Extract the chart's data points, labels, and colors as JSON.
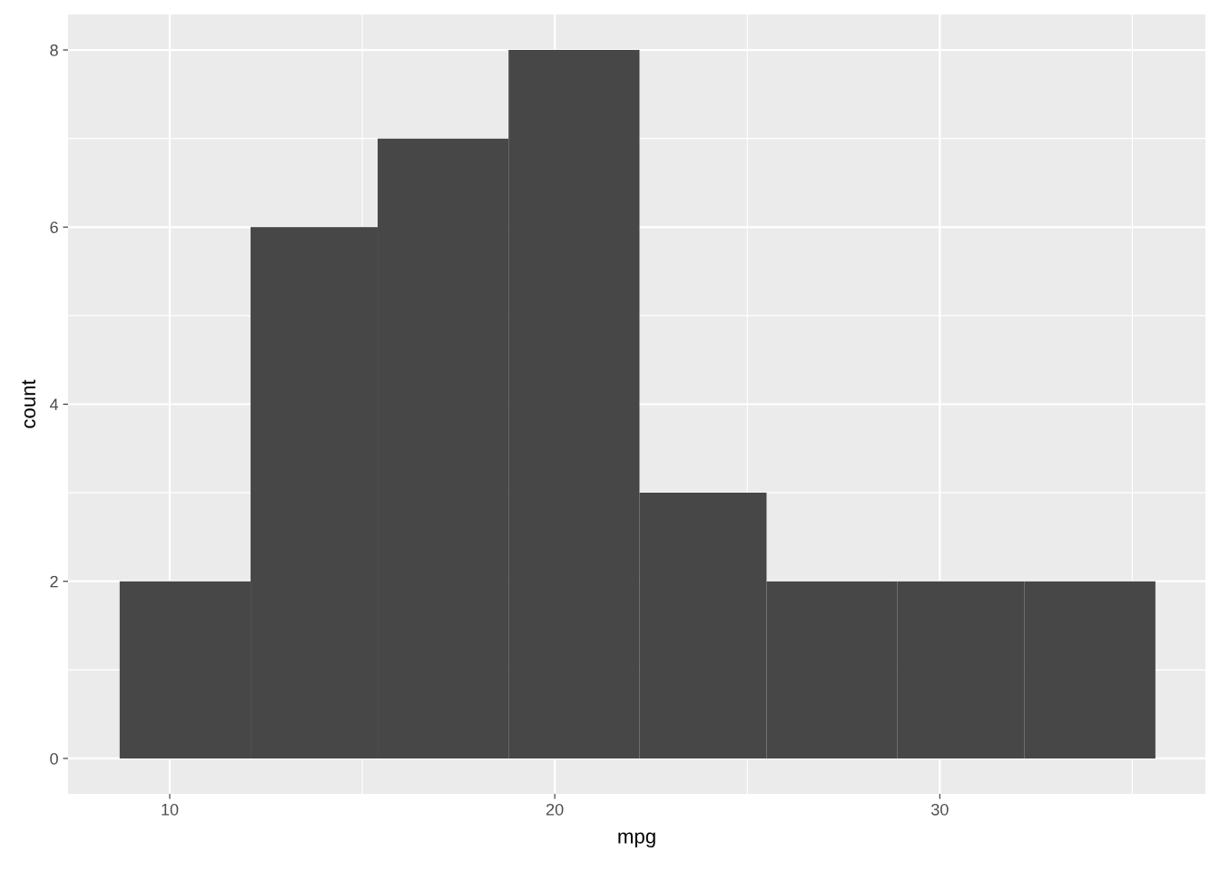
{
  "chart_data": {
    "type": "histogram",
    "xlabel": "mpg",
    "ylabel": "count",
    "bins": [
      8.7,
      12.1,
      15.4,
      18.8,
      22.2,
      25.5,
      28.9,
      32.2,
      35.6
    ],
    "values": [
      2,
      6,
      7,
      8,
      3,
      2,
      2,
      2
    ],
    "color": "#474747",
    "xlim": [
      7.36,
      36.9
    ],
    "xticks": [
      10,
      20,
      30
    ],
    "ylim": [
      -0.4,
      8.4
    ],
    "yticks": [
      0,
      2,
      4,
      6,
      8
    ],
    "grid": true
  }
}
